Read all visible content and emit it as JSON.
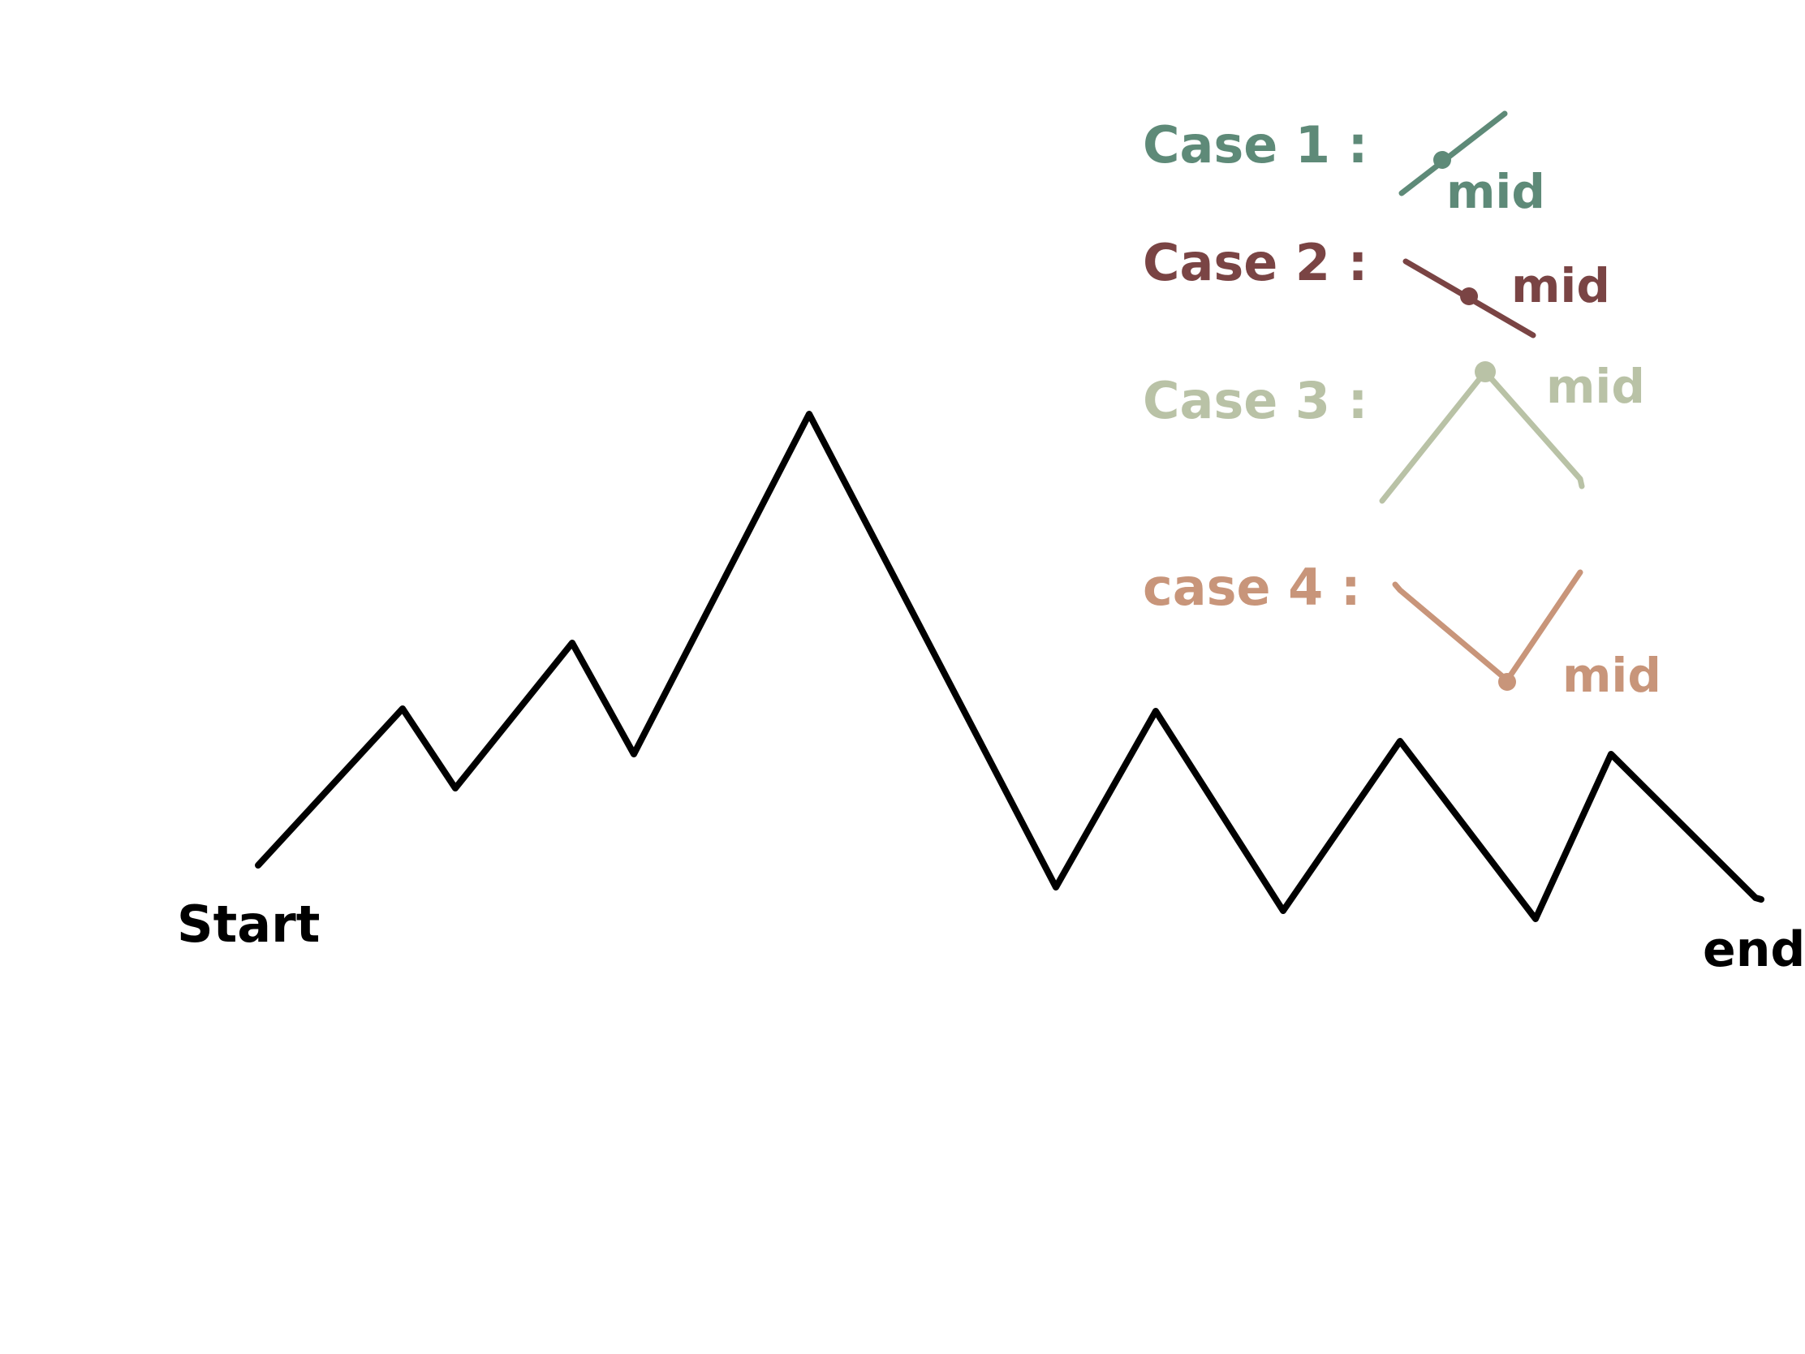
{
  "diagram": {
    "start_label": "Start",
    "end_label": "end"
  },
  "legend": {
    "cases": [
      {
        "label": "Case 1 :",
        "mid_label": "mid",
        "color": "#5e8a78"
      },
      {
        "label": "Case 2 :",
        "mid_label": "mid",
        "color": "#7a4444"
      },
      {
        "label": "Case 3 :",
        "mid_label": "mid",
        "color": "#b9c2a6"
      },
      {
        "label": "case 4 :",
        "mid_label": "mid",
        "color": "#c8957a"
      }
    ]
  },
  "colors": {
    "ink": "#000000",
    "background": "#ffffff"
  }
}
